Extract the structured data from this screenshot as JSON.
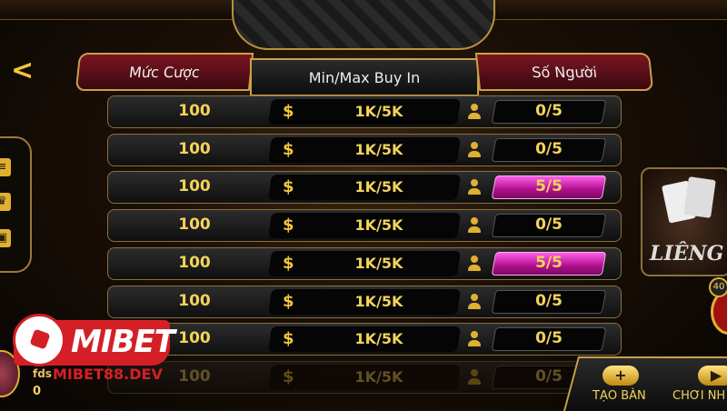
{
  "header": {
    "back_icon": "chevron-left-icon",
    "columns": [
      "Mức Cược",
      "Min/Max Buy In",
      "Số Người"
    ]
  },
  "sidebar": {
    "icons": [
      "list-icon",
      "trophy-icon",
      "wallet-icon"
    ]
  },
  "rows": [
    {
      "bet": "100",
      "currency": "$",
      "buyin": "1K/5K",
      "players": "0/5",
      "full": false
    },
    {
      "bet": "100",
      "currency": "$",
      "buyin": "1K/5K",
      "players": "0/5",
      "full": false
    },
    {
      "bet": "100",
      "currency": "$",
      "buyin": "1K/5K",
      "players": "5/5",
      "full": true
    },
    {
      "bet": "100",
      "currency": "$",
      "buyin": "1K/5K",
      "players": "0/5",
      "full": false
    },
    {
      "bet": "100",
      "currency": "$",
      "buyin": "1K/5K",
      "players": "5/5",
      "full": true
    },
    {
      "bet": "100",
      "currency": "$",
      "buyin": "1K/5K",
      "players": "0/5",
      "full": false
    },
    {
      "bet": "100",
      "currency": "$",
      "buyin": "1K/5K",
      "players": "0/5",
      "full": false
    },
    {
      "bet": "100",
      "currency": "$",
      "buyin": "1K/5K",
      "players": "0/5",
      "full": false
    }
  ],
  "game_card": {
    "title": "LIÊNG",
    "badge": "40"
  },
  "bottom": {
    "create_table": "TẠO BÀN",
    "play_now": "CHƠI NH"
  },
  "user": {
    "name": "fds",
    "balance": "0"
  },
  "watermark": {
    "logo": "MIBET",
    "site": "MIBET88.DEV"
  },
  "colors": {
    "gold": "#f3d35a",
    "full": "#d21aa8",
    "logo_red": "#d51f26"
  }
}
